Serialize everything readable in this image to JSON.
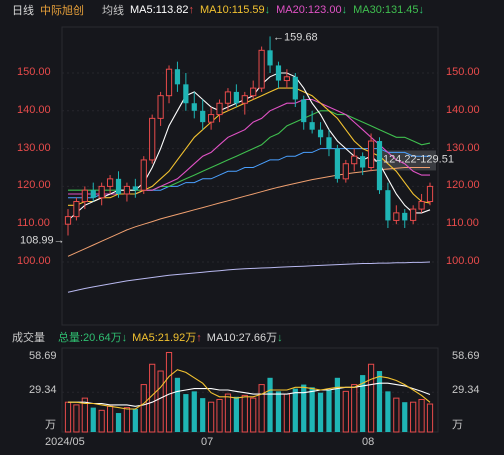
{
  "header": {
    "period": "日线",
    "stock_name": "中际旭创",
    "ma_label": "均线",
    "ma5": "MA5:113.82",
    "ma5_arrow": "↑",
    "ma10": "MA10:115.59",
    "ma10_arrow": "↓",
    "ma20": "MA20:123.00",
    "ma20_arrow": "↓",
    "ma30": "MA30:131.45",
    "ma30_arrow": "↓"
  },
  "price_axis": {
    "left": [
      "150.00",
      "140.00",
      "130.00",
      "120.00",
      "110.00",
      "100.00"
    ],
    "right": [
      "150.00",
      "140.00",
      "130.00",
      "120.00",
      "110.00",
      "100.00"
    ]
  },
  "annotations": {
    "high": "159.68",
    "low": "108.99",
    "range": "124.22-129.51"
  },
  "volume_header": {
    "title": "成交量",
    "total": "总量:20.64万",
    "total_arrow": "↓",
    "ma5": "MA5:21.92万",
    "ma5_arrow": "↑",
    "ma10": "MA10:27.66万",
    "ma10_arrow": "↓"
  },
  "volume_axis": {
    "left": [
      "58.69",
      "29.34",
      "万"
    ],
    "right": [
      "58.69",
      "29.34",
      "万"
    ]
  },
  "x_axis": [
    "2024/05",
    "07",
    "08"
  ],
  "colors": {
    "up": "#e84b4b",
    "down": "#1fb5b5",
    "ma5": "#ffffff",
    "ma10": "#f2c230",
    "ma20": "#e052c5",
    "ma30": "#3fbf4f",
    "ma60": "#4aa0ff",
    "ma120": "#f0a070",
    "ma250": "#b9b9f0"
  },
  "chart_data": {
    "type": "candlestick",
    "ylim": [
      97,
      162
    ],
    "candles": [
      {
        "o": 110,
        "h": 114,
        "l": 107,
        "c": 112
      },
      {
        "o": 112,
        "h": 117,
        "l": 111,
        "c": 116
      },
      {
        "o": 116,
        "h": 120,
        "l": 114,
        "c": 119
      },
      {
        "o": 119,
        "h": 121,
        "l": 116,
        "c": 117
      },
      {
        "o": 117,
        "h": 121,
        "l": 115,
        "c": 120
      },
      {
        "o": 120,
        "h": 123,
        "l": 118,
        "c": 122
      },
      {
        "o": 122,
        "h": 124,
        "l": 117,
        "c": 118
      },
      {
        "o": 118,
        "h": 121,
        "l": 116,
        "c": 120
      },
      {
        "o": 120,
        "h": 122,
        "l": 117,
        "c": 119
      },
      {
        "o": 119,
        "h": 128,
        "l": 118,
        "c": 127
      },
      {
        "o": 127,
        "h": 139,
        "l": 126,
        "c": 138
      },
      {
        "o": 138,
        "h": 145,
        "l": 136,
        "c": 144
      },
      {
        "o": 144,
        "h": 152,
        "l": 142,
        "c": 151
      },
      {
        "o": 151,
        "h": 153,
        "l": 145,
        "c": 147
      },
      {
        "o": 147,
        "h": 150,
        "l": 140,
        "c": 142
      },
      {
        "o": 142,
        "h": 145,
        "l": 138,
        "c": 140
      },
      {
        "o": 140,
        "h": 143,
        "l": 135,
        "c": 137
      },
      {
        "o": 137,
        "h": 141,
        "l": 135,
        "c": 139
      },
      {
        "o": 139,
        "h": 143,
        "l": 137,
        "c": 142
      },
      {
        "o": 142,
        "h": 146,
        "l": 140,
        "c": 145
      },
      {
        "o": 145,
        "h": 147,
        "l": 141,
        "c": 142
      },
      {
        "o": 142,
        "h": 145,
        "l": 139,
        "c": 144
      },
      {
        "o": 144,
        "h": 148,
        "l": 143,
        "c": 146
      },
      {
        "o": 146,
        "h": 157,
        "l": 145,
        "c": 156
      },
      {
        "o": 156,
        "h": 159.68,
        "l": 150,
        "c": 152
      },
      {
        "o": 152,
        "h": 153,
        "l": 146,
        "c": 148
      },
      {
        "o": 148,
        "h": 151,
        "l": 146,
        "c": 149
      },
      {
        "o": 149,
        "h": 150,
        "l": 141,
        "c": 143
      },
      {
        "o": 143,
        "h": 144,
        "l": 135,
        "c": 137
      },
      {
        "o": 137,
        "h": 140,
        "l": 134,
        "c": 135
      },
      {
        "o": 135,
        "h": 137,
        "l": 131,
        "c": 133
      },
      {
        "o": 133,
        "h": 135,
        "l": 128,
        "c": 130
      },
      {
        "o": 130,
        "h": 131,
        "l": 121,
        "c": 122
      },
      {
        "o": 122,
        "h": 127,
        "l": 121,
        "c": 126
      },
      {
        "o": 126,
        "h": 130,
        "l": 124,
        "c": 128
      },
      {
        "o": 128,
        "h": 129,
        "l": 123,
        "c": 125
      },
      {
        "o": 125,
        "h": 134,
        "l": 124,
        "c": 132
      },
      {
        "o": 132,
        "h": 133,
        "l": 118,
        "c": 119
      },
      {
        "o": 119,
        "h": 121,
        "l": 108.99,
        "c": 111
      },
      {
        "o": 111,
        "h": 115,
        "l": 110,
        "c": 113
      },
      {
        "o": 113,
        "h": 114,
        "l": 109,
        "c": 111
      },
      {
        "o": 111,
        "h": 115,
        "l": 110,
        "c": 114
      },
      {
        "o": 114,
        "h": 118,
        "l": 113,
        "c": 116
      },
      {
        "o": 116,
        "h": 121,
        "l": 115,
        "c": 120
      }
    ],
    "ma5": [
      111,
      113,
      115,
      116,
      117,
      118,
      119,
      119,
      119,
      121,
      125,
      130,
      136,
      140,
      144,
      145,
      143,
      141,
      140,
      141,
      142,
      143,
      144,
      147,
      149,
      150,
      150,
      149,
      146,
      142,
      139,
      135,
      132,
      130,
      128,
      127,
      128,
      126,
      122,
      118,
      115,
      113,
      113,
      113.82
    ],
    "ma10": [
      115,
      115,
      116,
      116,
      117,
      117,
      118,
      118,
      118,
      119,
      120,
      122,
      124,
      127,
      130,
      133,
      135,
      137,
      139,
      140,
      141,
      142,
      143,
      144,
      145,
      146,
      146,
      146,
      145,
      144,
      142,
      140,
      138,
      135,
      132,
      130,
      129,
      128,
      126,
      124,
      121,
      118,
      116,
      115.59
    ],
    "ma20": [
      118,
      118,
      118,
      118,
      118,
      118,
      118,
      118,
      118,
      119,
      119,
      120,
      121,
      122,
      124,
      126,
      128,
      129,
      131,
      133,
      134,
      135,
      137,
      138,
      140,
      141,
      142,
      142,
      143,
      143,
      142,
      141,
      140,
      139,
      137,
      135,
      133,
      131,
      129,
      127,
      126,
      124,
      123,
      123.0
    ],
    "ma30": [
      119,
      119,
      119,
      119,
      119,
      119,
      119,
      119,
      119,
      119,
      119,
      120,
      120,
      121,
      122,
      123,
      124,
      125,
      126,
      127,
      128,
      129,
      130,
      131,
      133,
      134,
      136,
      137,
      138,
      139,
      140,
      140,
      139,
      139,
      138,
      137,
      136,
      135,
      134,
      133,
      133,
      132,
      131,
      131.45
    ],
    "ma60": [
      117,
      117,
      117,
      117,
      118,
      118,
      118,
      118,
      118,
      119,
      119,
      119,
      120,
      120,
      121,
      121,
      122,
      122,
      123,
      124,
      124,
      125,
      125,
      126,
      127,
      127,
      128,
      128,
      129,
      129,
      130,
      130,
      130,
      130,
      130,
      130,
      130,
      130,
      129,
      129,
      129,
      128,
      128,
      128
    ],
    "ma120": [
      101.5,
      102.5,
      103.5,
      104.5,
      105.5,
      106.5,
      107.5,
      108.5,
      109.3,
      110,
      110.7,
      111.4,
      112,
      112.6,
      113.2,
      113.8,
      114.4,
      115,
      115.6,
      116.2,
      116.8,
      117.4,
      118,
      118.6,
      119.2,
      119.8,
      120.3,
      120.8,
      121.3,
      121.8,
      122.2,
      122.6,
      123,
      123.3,
      123.6,
      123.9,
      124.2,
      124.4,
      124.6,
      124.8,
      125,
      125,
      125,
      125
    ],
    "ma250": [
      92,
      92.5,
      93,
      93.4,
      93.8,
      94.2,
      94.6,
      95,
      95.3,
      95.6,
      95.9,
      96.2,
      96.5,
      96.7,
      96.9,
      97.1,
      97.3,
      97.5,
      97.7,
      97.9,
      98.1,
      98.2,
      98.3,
      98.4,
      98.5,
      98.6,
      98.7,
      98.8,
      98.9,
      99,
      99.1,
      99.2,
      99.3,
      99.4,
      99.5,
      99.6,
      99.6,
      99.7,
      99.7,
      99.8,
      99.8,
      99.9,
      99.9,
      100
    ],
    "volume": [
      22,
      20,
      25,
      18,
      16,
      19,
      14,
      18,
      17,
      35,
      50,
      45,
      58.69,
      40,
      28,
      30,
      25,
      22,
      24,
      28,
      26,
      27,
      25,
      35,
      40,
      30,
      28,
      32,
      35,
      33,
      29,
      31,
      40,
      30,
      35,
      42,
      50,
      45,
      30,
      25,
      22,
      22,
      24,
      20.64
    ],
    "vol_ma5": [
      22,
      22,
      21,
      21,
      20,
      19,
      18,
      17,
      17,
      21,
      27,
      33,
      41,
      46,
      44,
      40,
      36,
      29,
      26,
      26,
      25,
      26,
      26,
      28,
      31,
      31,
      31,
      33,
      33,
      32,
      31,
      32,
      33,
      33,
      33,
      36,
      39,
      41,
      40,
      38,
      35,
      31,
      27,
      21.92
    ],
    "vol_ma10": [
      22,
      22,
      22,
      21,
      21,
      20,
      20,
      20,
      19,
      20,
      22,
      25,
      28,
      30,
      31,
      32,
      32,
      32,
      31,
      31,
      30,
      29,
      28,
      28,
      28,
      28,
      28,
      29,
      29,
      30,
      31,
      31,
      32,
      33,
      33,
      34,
      35,
      36,
      36,
      35,
      34,
      32,
      30,
      27.66
    ],
    "vol_ylim": [
      0,
      62
    ]
  }
}
